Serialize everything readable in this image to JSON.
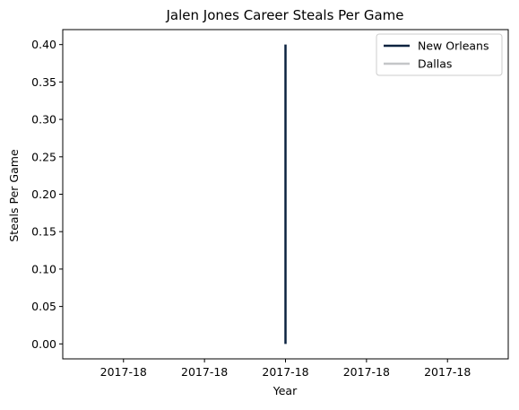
{
  "chart_data": {
    "type": "line",
    "title": "Jalen Jones Career Steals Per Game",
    "xlabel": "Year",
    "ylabel": "Steals Per Game",
    "x_tick_labels": [
      "2017-18",
      "2017-18",
      "2017-18",
      "2017-18",
      "2017-18"
    ],
    "x_ticks": [
      -0.04,
      -0.02,
      0.0,
      0.02,
      0.04
    ],
    "xlim": [
      -0.055,
      0.055
    ],
    "ylim": [
      -0.02,
      0.42
    ],
    "y_ticks": [
      0.0,
      0.05,
      0.1,
      0.15,
      0.2,
      0.25,
      0.3,
      0.35,
      0.4
    ],
    "y_tick_labels": [
      "0.00",
      "0.05",
      "0.10",
      "0.15",
      "0.20",
      "0.25",
      "0.30",
      "0.35",
      "0.40"
    ],
    "grid": false,
    "legend_position": "top-right",
    "series": [
      {
        "name": "New Orleans",
        "color": "#0c2340",
        "points": [
          {
            "x_label": "2017-18",
            "x": 0.0,
            "y": 0.4
          },
          {
            "x_label": "2017-18",
            "x": 0.0,
            "y": 0.0
          }
        ]
      },
      {
        "name": "Dallas",
        "color": "#c4c6c8",
        "points": [
          {
            "x_label": "2017-18",
            "x": 0.0,
            "y": 0.0
          }
        ]
      }
    ]
  }
}
